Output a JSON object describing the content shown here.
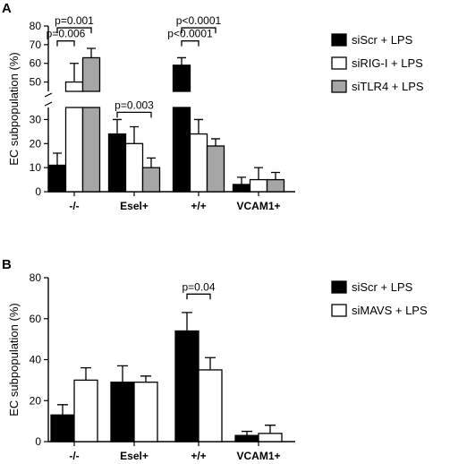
{
  "colors": {
    "siScr": "#000000",
    "open": "#ffffff",
    "siTLR4": "#a6a6a6"
  },
  "chart_data": [
    {
      "panel": "A",
      "type": "bar",
      "categories": [
        "-/-",
        "Esel+",
        "+/+",
        "VCAM1+"
      ],
      "ylabel": "EC subpopulation (%)",
      "y_ticks_lower": [
        0,
        10,
        20,
        30
      ],
      "y_ticks_upper": [
        50,
        60,
        70,
        80
      ],
      "axis_break": [
        35,
        45
      ],
      "ylim": [
        0,
        80
      ],
      "legend_position": "right",
      "series": [
        {
          "name": "siScr + LPS",
          "color": "#000000",
          "values": [
            11,
            24,
            59,
            3
          ],
          "errors": [
            5,
            6,
            4,
            3
          ]
        },
        {
          "name": "siRIG-I + LPS",
          "color": "#ffffff",
          "values": [
            50,
            20,
            24,
            5
          ],
          "errors": [
            10,
            7,
            6,
            5
          ]
        },
        {
          "name": "siTLR4 + LPS",
          "color": "#a6a6a6",
          "values": [
            63,
            10,
            19,
            5
          ],
          "errors": [
            5,
            4,
            3,
            3
          ]
        }
      ],
      "annotations": [
        {
          "text": "p=0.001",
          "category": 0,
          "from_series": 0,
          "to_series": 2,
          "y": 79
        },
        {
          "text": "p=0.006",
          "category": 0,
          "from_series": 0,
          "to_series": 1,
          "y": 72
        },
        {
          "text": "p=0.003",
          "category": 1,
          "from_series": 0,
          "to_series": 2,
          "y": 33
        },
        {
          "text": "p<0.0001",
          "category": 2,
          "from_series": 0,
          "to_series": 2,
          "y": 79
        },
        {
          "text": "p<0.0001",
          "category": 2,
          "from_series": 0,
          "to_series": 1,
          "y": 72
        }
      ]
    },
    {
      "panel": "B",
      "type": "bar",
      "categories": [
        "-/-",
        "Esel+",
        "+/+",
        "VCAM1+"
      ],
      "ylabel": "EC subpopulation (%)",
      "y_ticks": [
        0,
        20,
        40,
        60,
        80
      ],
      "ylim": [
        0,
        80
      ],
      "legend_position": "right",
      "series": [
        {
          "name": "siScr + LPS",
          "color": "#000000",
          "values": [
            13,
            29,
            54,
            3
          ],
          "errors": [
            5,
            8,
            9,
            2
          ]
        },
        {
          "name": "siMAVS + LPS",
          "color": "#ffffff",
          "values": [
            30,
            29,
            35,
            4
          ],
          "errors": [
            6,
            3,
            6,
            4
          ]
        }
      ],
      "annotations": [
        {
          "text": "p=0.04",
          "category": 2,
          "from_series": 0,
          "to_series": 1,
          "y": 72
        }
      ]
    }
  ]
}
